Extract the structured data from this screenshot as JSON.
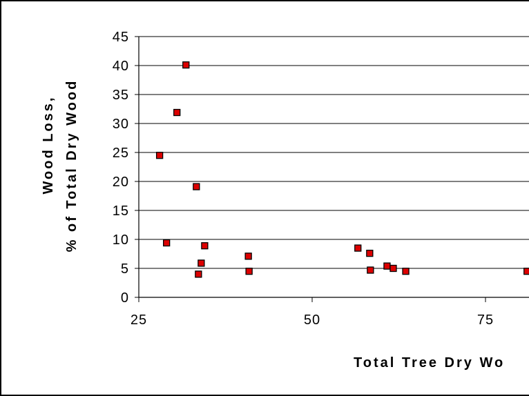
{
  "chart_data": {
    "type": "scatter",
    "title": "",
    "xlabel": "Total Tree Dry Wo",
    "ylabel_lines": [
      "Wood Loss,",
      "% of Total Dry Wood"
    ],
    "xlim": [
      25,
      81
    ],
    "ylim": [
      0,
      45
    ],
    "x_ticks": [
      25,
      50,
      75
    ],
    "y_ticks": [
      0,
      5,
      10,
      15,
      20,
      25,
      30,
      35,
      40,
      45
    ],
    "grid": "horizontal",
    "legend": "none",
    "marker_color": "#dd0000",
    "marker_edge_color": "#000000",
    "points": [
      {
        "x": 28.0,
        "y": 24.5
      },
      {
        "x": 29.0,
        "y": 9.4
      },
      {
        "x": 30.5,
        "y": 31.9
      },
      {
        "x": 31.8,
        "y": 40.1
      },
      {
        "x": 33.3,
        "y": 19.1
      },
      {
        "x": 33.6,
        "y": 4.0
      },
      {
        "x": 34.0,
        "y": 5.9
      },
      {
        "x": 34.5,
        "y": 8.9
      },
      {
        "x": 40.8,
        "y": 7.1
      },
      {
        "x": 40.9,
        "y": 4.5
      },
      {
        "x": 56.6,
        "y": 8.5
      },
      {
        "x": 58.3,
        "y": 7.6
      },
      {
        "x": 58.4,
        "y": 4.7
      },
      {
        "x": 60.8,
        "y": 5.4
      },
      {
        "x": 61.7,
        "y": 5.0
      },
      {
        "x": 63.5,
        "y": 4.5
      },
      {
        "x": 81.0,
        "y": 4.5
      }
    ]
  }
}
